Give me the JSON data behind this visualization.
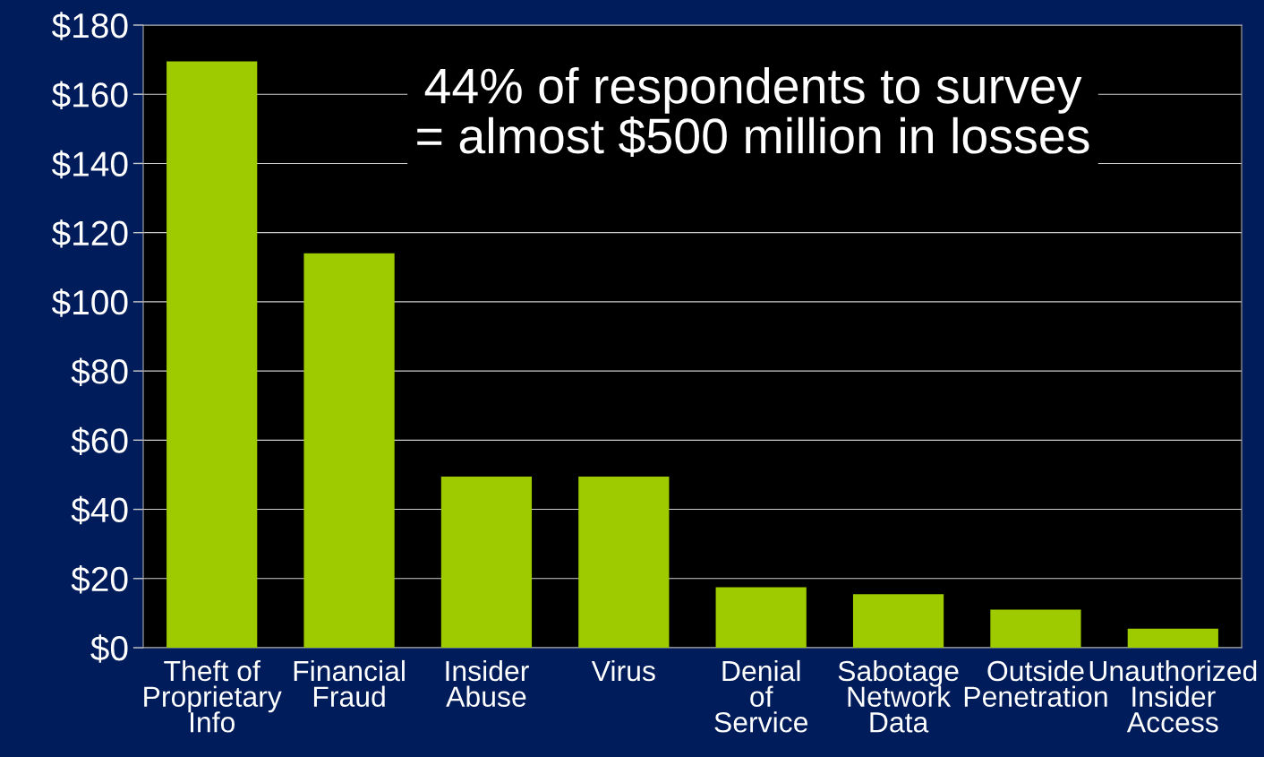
{
  "chart_data": {
    "type": "bar",
    "categories": [
      "Theft of\nProprietary\nInfo",
      "Financial\nFraud",
      "Insider\nAbuse",
      "Virus",
      "Denial\nof\nService",
      "Sabotage\nNetwork\nData",
      "Outside\nPenetration",
      "Unauthorized\nInsider\nAccess"
    ],
    "values": [
      169.5,
      114,
      49.5,
      49.5,
      17.5,
      15.5,
      11,
      5.5
    ],
    "color": "#9dcb00",
    "ylim": [
      0,
      180
    ],
    "yticks": [
      {
        "value": 0,
        "label": "$0"
      },
      {
        "value": 20,
        "label": "$20"
      },
      {
        "value": 40,
        "label": "$40"
      },
      {
        "value": 60,
        "label": "$60"
      },
      {
        "value": 80,
        "label": "$80"
      },
      {
        "value": 100,
        "label": "$100"
      },
      {
        "value": 120,
        "label": "$120"
      },
      {
        "value": 140,
        "label": "$140"
      },
      {
        "value": 160,
        "label": "$160"
      },
      {
        "value": 180,
        "label": "$180"
      }
    ],
    "grid": "y",
    "annotations": [
      "44% of respondents to survey\n= almost $500 million in losses"
    ]
  }
}
